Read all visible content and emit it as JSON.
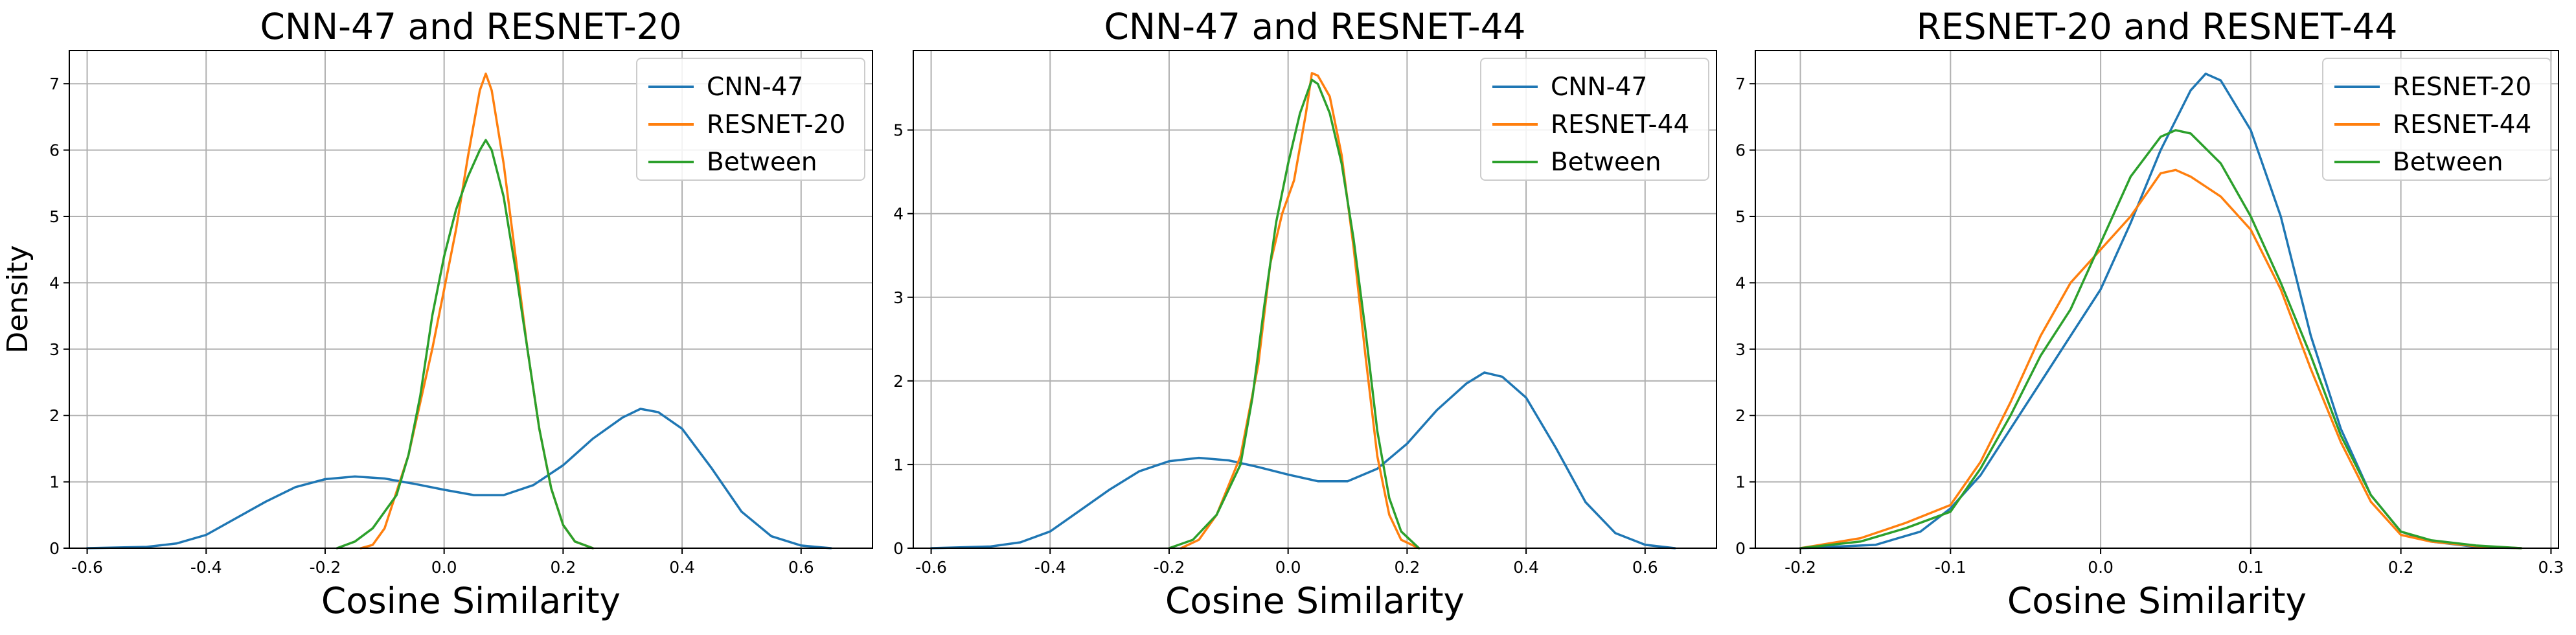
{
  "chart_data": [
    {
      "type": "line",
      "title": "CNN-47 and RESNET-20",
      "xlabel": "Cosine Similarity",
      "ylabel": "Density",
      "xlim": [
        -0.63,
        0.72
      ],
      "ylim": [
        0,
        7.5
      ],
      "xticks": [
        -0.6,
        -0.4,
        -0.2,
        0.0,
        0.2,
        0.4,
        0.6
      ],
      "xtick_labels": [
        "-0.6",
        "-0.4",
        "-0.2",
        "0.0",
        "0.2",
        "0.4",
        "0.6"
      ],
      "yticks": [
        0,
        1,
        2,
        3,
        4,
        5,
        6,
        7
      ],
      "ytick_labels": [
        "0",
        "1",
        "2",
        "3",
        "4",
        "5",
        "6",
        "7"
      ],
      "grid": true,
      "legend_position": "top-right",
      "series": [
        {
          "name": "CNN-47",
          "color": "#1f77b4",
          "points": [
            [
              -0.6,
              0.0
            ],
            [
              -0.5,
              0.02
            ],
            [
              -0.45,
              0.07
            ],
            [
              -0.4,
              0.2
            ],
            [
              -0.35,
              0.45
            ],
            [
              -0.3,
              0.7
            ],
            [
              -0.25,
              0.92
            ],
            [
              -0.2,
              1.04
            ],
            [
              -0.15,
              1.08
            ],
            [
              -0.1,
              1.05
            ],
            [
              -0.05,
              0.97
            ],
            [
              0.0,
              0.88
            ],
            [
              0.05,
              0.8
            ],
            [
              0.1,
              0.8
            ],
            [
              0.15,
              0.95
            ],
            [
              0.2,
              1.25
            ],
            [
              0.25,
              1.65
            ],
            [
              0.3,
              1.97
            ],
            [
              0.33,
              2.1
            ],
            [
              0.36,
              2.05
            ],
            [
              0.4,
              1.8
            ],
            [
              0.45,
              1.2
            ],
            [
              0.5,
              0.55
            ],
            [
              0.55,
              0.18
            ],
            [
              0.6,
              0.04
            ],
            [
              0.65,
              0.0
            ]
          ]
        },
        {
          "name": "RESNET-20",
          "color": "#ff7f0e",
          "points": [
            [
              -0.14,
              0.0
            ],
            [
              -0.12,
              0.05
            ],
            [
              -0.1,
              0.3
            ],
            [
              -0.06,
              1.4
            ],
            [
              -0.04,
              2.2
            ],
            [
              -0.02,
              3.0
            ],
            [
              0.0,
              3.9
            ],
            [
              0.02,
              4.8
            ],
            [
              0.04,
              5.9
            ],
            [
              0.06,
              6.9
            ],
            [
              0.07,
              7.15
            ],
            [
              0.08,
              6.9
            ],
            [
              0.1,
              5.8
            ],
            [
              0.12,
              4.4
            ],
            [
              0.14,
              3.0
            ],
            [
              0.16,
              1.8
            ],
            [
              0.18,
              0.9
            ],
            [
              0.2,
              0.35
            ],
            [
              0.22,
              0.1
            ],
            [
              0.25,
              0.0
            ]
          ]
        },
        {
          "name": "Between",
          "color": "#2ca02c",
          "points": [
            [
              -0.18,
              0.0
            ],
            [
              -0.15,
              0.1
            ],
            [
              -0.12,
              0.3
            ],
            [
              -0.08,
              0.8
            ],
            [
              -0.06,
              1.4
            ],
            [
              -0.04,
              2.3
            ],
            [
              -0.02,
              3.5
            ],
            [
              0.0,
              4.4
            ],
            [
              0.02,
              5.1
            ],
            [
              0.04,
              5.6
            ],
            [
              0.06,
              6.0
            ],
            [
              0.07,
              6.15
            ],
            [
              0.08,
              6.0
            ],
            [
              0.1,
              5.3
            ],
            [
              0.12,
              4.2
            ],
            [
              0.14,
              3.0
            ],
            [
              0.16,
              1.8
            ],
            [
              0.18,
              0.9
            ],
            [
              0.2,
              0.35
            ],
            [
              0.22,
              0.1
            ],
            [
              0.25,
              0.0
            ]
          ]
        }
      ]
    },
    {
      "type": "line",
      "title": "CNN-47 and RESNET-44",
      "xlabel": "Cosine Similarity",
      "ylabel": "",
      "xlim": [
        -0.63,
        0.72
      ],
      "ylim": [
        0,
        5.95
      ],
      "xticks": [
        -0.6,
        -0.4,
        -0.2,
        0.0,
        0.2,
        0.4,
        0.6
      ],
      "xtick_labels": [
        "-0.6",
        "-0.4",
        "-0.2",
        "0.0",
        "0.2",
        "0.4",
        "0.6"
      ],
      "yticks": [
        0,
        1,
        2,
        3,
        4,
        5
      ],
      "ytick_labels": [
        "0",
        "1",
        "2",
        "3",
        "4",
        "5"
      ],
      "grid": true,
      "legend_position": "top-right",
      "series": [
        {
          "name": "CNN-47",
          "color": "#1f77b4",
          "points": [
            [
              -0.6,
              0.0
            ],
            [
              -0.5,
              0.02
            ],
            [
              -0.45,
              0.07
            ],
            [
              -0.4,
              0.2
            ],
            [
              -0.35,
              0.45
            ],
            [
              -0.3,
              0.7
            ],
            [
              -0.25,
              0.92
            ],
            [
              -0.2,
              1.04
            ],
            [
              -0.15,
              1.08
            ],
            [
              -0.1,
              1.05
            ],
            [
              -0.05,
              0.97
            ],
            [
              0.0,
              0.88
            ],
            [
              0.05,
              0.8
            ],
            [
              0.1,
              0.8
            ],
            [
              0.15,
              0.95
            ],
            [
              0.2,
              1.25
            ],
            [
              0.25,
              1.65
            ],
            [
              0.3,
              1.97
            ],
            [
              0.33,
              2.1
            ],
            [
              0.36,
              2.05
            ],
            [
              0.4,
              1.8
            ],
            [
              0.45,
              1.2
            ],
            [
              0.5,
              0.55
            ],
            [
              0.55,
              0.18
            ],
            [
              0.6,
              0.04
            ],
            [
              0.65,
              0.0
            ]
          ]
        },
        {
          "name": "RESNET-44",
          "color": "#ff7f0e",
          "points": [
            [
              -0.18,
              0.0
            ],
            [
              -0.15,
              0.1
            ],
            [
              -0.12,
              0.4
            ],
            [
              -0.08,
              1.1
            ],
            [
              -0.05,
              2.2
            ],
            [
              -0.03,
              3.4
            ],
            [
              -0.01,
              4.0
            ],
            [
              0.01,
              4.4
            ],
            [
              0.03,
              5.2
            ],
            [
              0.04,
              5.68
            ],
            [
              0.05,
              5.65
            ],
            [
              0.07,
              5.4
            ],
            [
              0.09,
              4.7
            ],
            [
              0.11,
              3.6
            ],
            [
              0.13,
              2.3
            ],
            [
              0.15,
              1.1
            ],
            [
              0.17,
              0.4
            ],
            [
              0.19,
              0.1
            ],
            [
              0.22,
              0.0
            ]
          ]
        },
        {
          "name": "Between",
          "color": "#2ca02c",
          "points": [
            [
              -0.2,
              0.0
            ],
            [
              -0.16,
              0.1
            ],
            [
              -0.12,
              0.4
            ],
            [
              -0.08,
              1.0
            ],
            [
              -0.06,
              1.8
            ],
            [
              -0.04,
              2.9
            ],
            [
              -0.02,
              3.9
            ],
            [
              0.0,
              4.6
            ],
            [
              0.02,
              5.2
            ],
            [
              0.04,
              5.6
            ],
            [
              0.05,
              5.55
            ],
            [
              0.07,
              5.2
            ],
            [
              0.09,
              4.6
            ],
            [
              0.11,
              3.7
            ],
            [
              0.13,
              2.6
            ],
            [
              0.15,
              1.4
            ],
            [
              0.17,
              0.6
            ],
            [
              0.19,
              0.2
            ],
            [
              0.22,
              0.0
            ]
          ]
        }
      ]
    },
    {
      "type": "line",
      "title": "RESNET-20 and RESNET-44",
      "xlabel": "Cosine Similarity",
      "ylabel": "",
      "xlim": [
        -0.23,
        0.305
      ],
      "ylim": [
        0,
        7.5
      ],
      "xticks": [
        -0.2,
        -0.1,
        0.0,
        0.1,
        0.2,
        0.3
      ],
      "xtick_labels": [
        "-0.2",
        "-0.1",
        "0.0",
        "0.1",
        "0.2",
        "0.3"
      ],
      "yticks": [
        0,
        1,
        2,
        3,
        4,
        5,
        6,
        7
      ],
      "ytick_labels": [
        "0",
        "1",
        "2",
        "3",
        "4",
        "5",
        "6",
        "7"
      ],
      "grid": true,
      "legend_position": "top-right",
      "series": [
        {
          "name": "RESNET-20",
          "color": "#1f77b4",
          "points": [
            [
              -0.2,
              0.0
            ],
            [
              -0.15,
              0.05
            ],
            [
              -0.12,
              0.25
            ],
            [
              -0.1,
              0.6
            ],
            [
              -0.08,
              1.1
            ],
            [
              -0.06,
              1.8
            ],
            [
              -0.04,
              2.5
            ],
            [
              -0.02,
              3.2
            ],
            [
              0.0,
              3.9
            ],
            [
              0.02,
              4.9
            ],
            [
              0.04,
              6.0
            ],
            [
              0.06,
              6.9
            ],
            [
              0.07,
              7.15
            ],
            [
              0.08,
              7.05
            ],
            [
              0.1,
              6.3
            ],
            [
              0.12,
              5.0
            ],
            [
              0.14,
              3.2
            ],
            [
              0.16,
              1.8
            ],
            [
              0.18,
              0.8
            ],
            [
              0.2,
              0.25
            ],
            [
              0.22,
              0.1
            ],
            [
              0.25,
              0.02
            ],
            [
              0.28,
              0.0
            ]
          ]
        },
        {
          "name": "RESNET-44",
          "color": "#ff7f0e",
          "points": [
            [
              -0.2,
              0.0
            ],
            [
              -0.16,
              0.15
            ],
            [
              -0.13,
              0.38
            ],
            [
              -0.1,
              0.65
            ],
            [
              -0.08,
              1.3
            ],
            [
              -0.06,
              2.2
            ],
            [
              -0.04,
              3.2
            ],
            [
              -0.02,
              4.0
            ],
            [
              0.0,
              4.5
            ],
            [
              0.02,
              5.0
            ],
            [
              0.04,
              5.65
            ],
            [
              0.05,
              5.7
            ],
            [
              0.06,
              5.6
            ],
            [
              0.08,
              5.3
            ],
            [
              0.1,
              4.8
            ],
            [
              0.12,
              3.9
            ],
            [
              0.14,
              2.7
            ],
            [
              0.16,
              1.6
            ],
            [
              0.18,
              0.7
            ],
            [
              0.2,
              0.2
            ],
            [
              0.22,
              0.1
            ],
            [
              0.25,
              0.03
            ],
            [
              0.28,
              0.0
            ]
          ]
        },
        {
          "name": "Between",
          "color": "#2ca02c",
          "points": [
            [
              -0.2,
              0.0
            ],
            [
              -0.16,
              0.1
            ],
            [
              -0.13,
              0.3
            ],
            [
              -0.1,
              0.55
            ],
            [
              -0.08,
              1.2
            ],
            [
              -0.06,
              2.0
            ],
            [
              -0.04,
              2.9
            ],
            [
              -0.02,
              3.6
            ],
            [
              0.0,
              4.6
            ],
            [
              0.02,
              5.6
            ],
            [
              0.04,
              6.2
            ],
            [
              0.05,
              6.3
            ],
            [
              0.06,
              6.25
            ],
            [
              0.08,
              5.8
            ],
            [
              0.1,
              5.0
            ],
            [
              0.12,
              4.0
            ],
            [
              0.14,
              2.9
            ],
            [
              0.16,
              1.7
            ],
            [
              0.18,
              0.8
            ],
            [
              0.2,
              0.25
            ],
            [
              0.22,
              0.12
            ],
            [
              0.25,
              0.04
            ],
            [
              0.28,
              0.0
            ]
          ]
        }
      ]
    }
  ]
}
